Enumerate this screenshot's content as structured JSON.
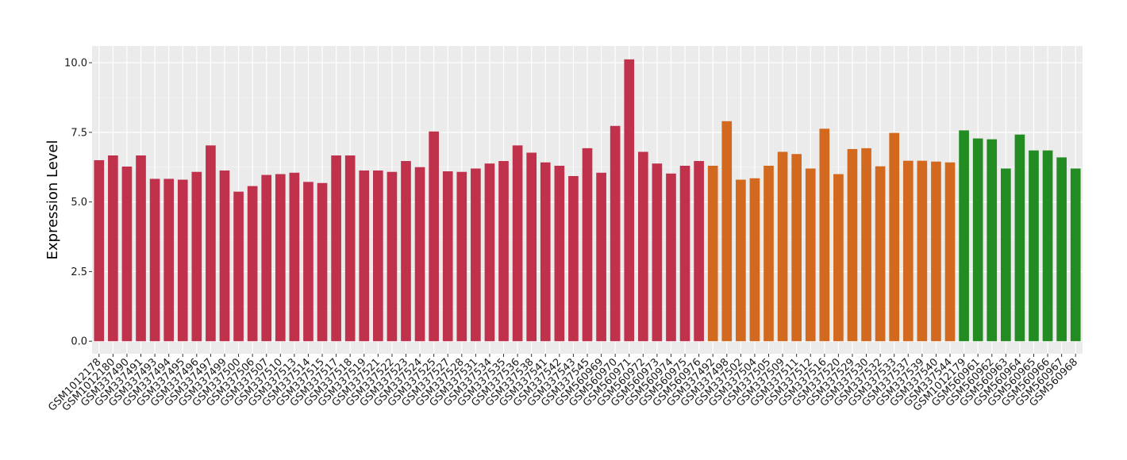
{
  "chart_data": {
    "type": "bar",
    "title": "",
    "xlabel": "",
    "ylabel": "Expression Level",
    "ylim": [
      -0.45,
      10.6
    ],
    "yticks": [
      0.0,
      2.5,
      5.0,
      7.5,
      10.0
    ],
    "ytick_labels": [
      "0.0",
      "2.5",
      "5.0",
      "7.5",
      "10.0"
    ],
    "grid": true,
    "legend": "none",
    "background": "#ebebeb",
    "group_colors": [
      "#c0314b",
      "#d2691e",
      "#228b22"
    ],
    "categories": [
      "GSM1012178",
      "GSM1012180",
      "GSM337490",
      "GSM337491",
      "GSM337493",
      "GSM337494",
      "GSM337495",
      "GSM337496",
      "GSM337497",
      "GSM337499",
      "GSM337500",
      "GSM337506",
      "GSM337507",
      "GSM337510",
      "GSM337513",
      "GSM337514",
      "GSM337515",
      "GSM337517",
      "GSM337518",
      "GSM337519",
      "GSM337521",
      "GSM337522",
      "GSM337523",
      "GSM337524",
      "GSM337525",
      "GSM337527",
      "GSM337528",
      "GSM337531",
      "GSM337534",
      "GSM337535",
      "GSM337536",
      "GSM337538",
      "GSM337541",
      "GSM337542",
      "GSM337543",
      "GSM337545",
      "GSM560969",
      "GSM560970",
      "GSM560971",
      "GSM560972",
      "GSM560973",
      "GSM560974",
      "GSM560975",
      "GSM560976",
      "GSM337492",
      "GSM337498",
      "GSM337502",
      "GSM337504",
      "GSM337505",
      "GSM337509",
      "GSM337511",
      "GSM337512",
      "GSM337516",
      "GSM337520",
      "GSM337529",
      "GSM337530",
      "GSM337532",
      "GSM337533",
      "GSM337537",
      "GSM337539",
      "GSM337540",
      "GSM337544",
      "GSM1012179",
      "GSM560961",
      "GSM560962",
      "GSM560963",
      "GSM560964",
      "GSM560965",
      "GSM560966",
      "GSM560967",
      "GSM560968"
    ],
    "values": [
      6.5,
      6.67,
      6.27,
      6.67,
      5.83,
      5.83,
      5.8,
      6.08,
      7.03,
      6.13,
      5.37,
      5.57,
      5.97,
      6.0,
      6.05,
      5.72,
      5.68,
      6.67,
      6.67,
      6.13,
      6.13,
      6.08,
      6.47,
      6.25,
      7.53,
      6.1,
      6.08,
      6.2,
      6.38,
      6.47,
      7.03,
      6.77,
      6.42,
      6.3,
      5.93,
      6.93,
      6.05,
      7.73,
      10.12,
      6.8,
      6.38,
      6.02,
      6.3,
      6.47,
      6.3,
      7.9,
      5.8,
      5.85,
      6.3,
      6.8,
      6.72,
      6.2,
      7.63,
      6.0,
      6.9,
      6.93,
      6.28,
      7.48,
      6.48,
      6.48,
      6.45,
      6.42,
      7.57,
      7.28,
      7.25,
      6.2,
      7.42,
      6.85,
      6.85,
      6.6,
      6.2
    ],
    "groups": [
      0,
      0,
      0,
      0,
      0,
      0,
      0,
      0,
      0,
      0,
      0,
      0,
      0,
      0,
      0,
      0,
      0,
      0,
      0,
      0,
      0,
      0,
      0,
      0,
      0,
      0,
      0,
      0,
      0,
      0,
      0,
      0,
      0,
      0,
      0,
      0,
      0,
      0,
      0,
      0,
      0,
      0,
      0,
      0,
      1,
      1,
      1,
      1,
      1,
      1,
      1,
      1,
      1,
      1,
      1,
      1,
      1,
      1,
      1,
      1,
      1,
      1,
      2,
      2,
      2,
      2,
      2,
      2,
      2,
      2,
      2
    ]
  }
}
